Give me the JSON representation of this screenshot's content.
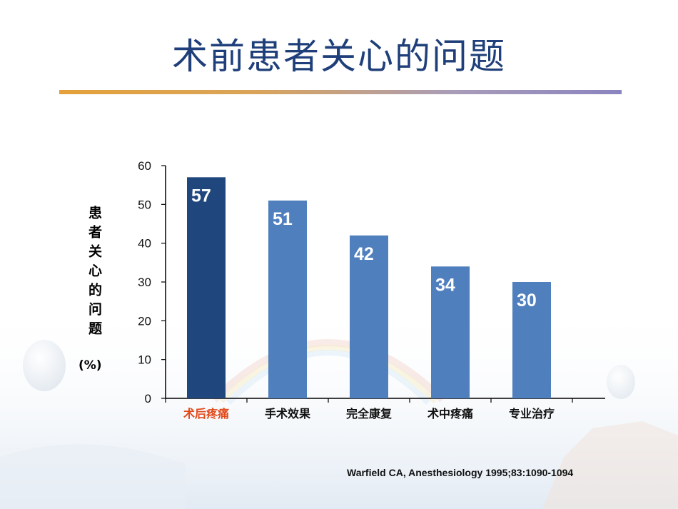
{
  "slide": {
    "title": "术前患者关心的问题",
    "citation": "Warfield CA,  Anesthesiology 1995;83:1090-1094"
  },
  "colors": {
    "title": "#1f3f7a",
    "highlight_bar": "#1f477e",
    "bar": "#4f7fbd",
    "highlight_label": "#e24a1a"
  },
  "chart_data": {
    "type": "bar",
    "title": "",
    "ylabel": "患者关心的问题",
    "ylabel_unit": "(%)",
    "xlabel": "",
    "categories": [
      "术后疼痛",
      "手术效果",
      "完全康复",
      "术中疼痛",
      "专业治疗"
    ],
    "values": [
      57,
      51,
      42,
      34,
      30
    ],
    "highlight_index": 0,
    "ylim": [
      0,
      60
    ],
    "yticks": [
      0,
      10,
      20,
      30,
      40,
      50,
      60
    ],
    "grid": false,
    "legend": "none"
  }
}
